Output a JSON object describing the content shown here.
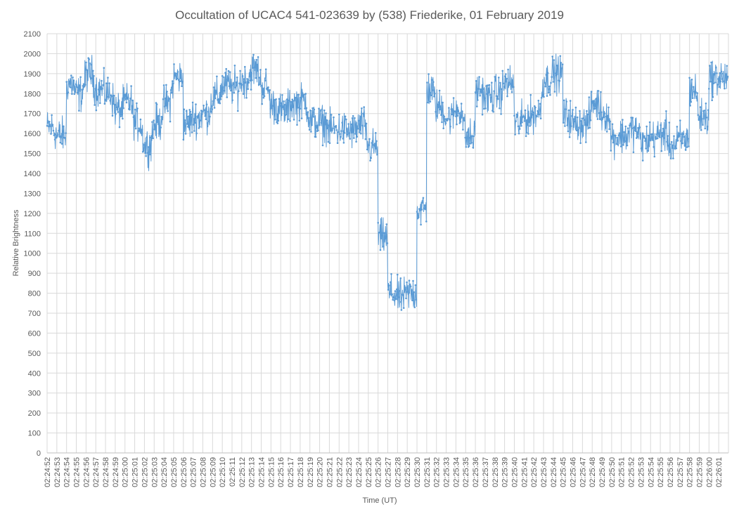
{
  "chart_data": {
    "type": "line",
    "title": "Occultation of UCAC4 541-023639 by (538) Friederike, 01 February 2019",
    "xlabel": "Time (UT)",
    "ylabel": "Relative Brightness",
    "ylim": [
      0,
      2100
    ],
    "y_ticks": [
      0,
      100,
      200,
      300,
      400,
      500,
      600,
      700,
      800,
      900,
      1000,
      1100,
      1200,
      1300,
      1400,
      1500,
      1600,
      1700,
      1800,
      1900,
      2000,
      2100
    ],
    "x_ticks": [
      "02:24:52",
      "02:24:53",
      "02:24:54",
      "02:24:55",
      "02:24:56",
      "02:24:57",
      "02:24:58",
      "02:24:59",
      "02:25:00",
      "02:25:01",
      "02:25:02",
      "02:25:03",
      "02:25:04",
      "02:25:05",
      "02:25:06",
      "02:25:07",
      "02:25:08",
      "02:25:09",
      "02:25:10",
      "02:25:11",
      "02:25:12",
      "02:25:13",
      "02:25:14",
      "02:25:15",
      "02:25:16",
      "02:25:17",
      "02:25:18",
      "02:25:19",
      "02:25:20",
      "02:25:21",
      "02:25:22",
      "02:25:23",
      "02:25:24",
      "02:25:25",
      "02:25:26",
      "02:25:27",
      "02:25:28",
      "02:25:29",
      "02:25:30",
      "02:25:31",
      "02:25:32",
      "02:25:33",
      "02:25:34",
      "02:25:35",
      "02:25:36",
      "02:25:37",
      "02:25:38",
      "02:25:39",
      "02:25:40",
      "02:25:41",
      "02:25:42",
      "02:25:43",
      "02:25:44",
      "02:25:45",
      "02:25:46",
      "02:25:47",
      "02:25:48",
      "02:25:49",
      "02:25:50",
      "02:25:51",
      "02:25:52",
      "02:25:53",
      "02:25:54",
      "02:25:55",
      "02:25:56",
      "02:25:57",
      "02:25:58",
      "02:25:59",
      "02:26:00",
      "02:26:01"
    ],
    "grid": true,
    "legend": "none",
    "series_color": "#5b9bd5",
    "series": [
      {
        "values_per_second": [
          1630,
          1590,
          1850,
          1800,
          1900,
          1820,
          1800,
          1720,
          1760,
          1650,
          1540,
          1650,
          1750,
          1880,
          1650,
          1680,
          1700,
          1780,
          1840,
          1830,
          1870,
          1920,
          1840,
          1740,
          1710,
          1750,
          1760,
          1660,
          1650,
          1620,
          1620,
          1610,
          1640,
          1530,
          1080,
          800,
          780,
          800,
          1220,
          1820,
          1730,
          1680,
          1720,
          1580,
          1820,
          1780,
          1800,
          1850,
          1650,
          1680,
          1700,
          1870,
          1900,
          1690,
          1650,
          1650,
          1750,
          1700,
          1580,
          1590,
          1620,
          1560,
          1580,
          1600,
          1540,
          1570,
          1820,
          1680,
          1880,
          1880
        ]
      }
    ]
  }
}
